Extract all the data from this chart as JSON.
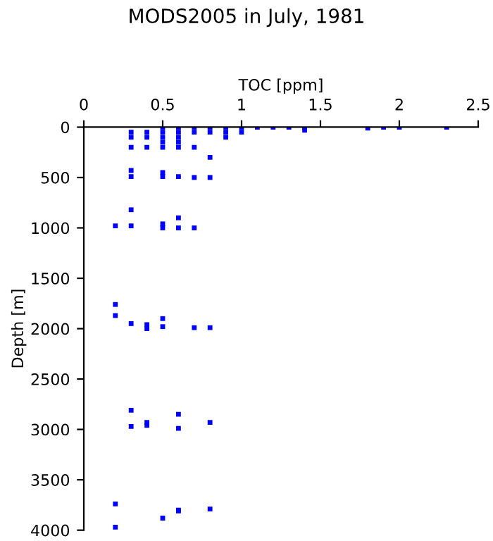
{
  "chart_data": {
    "type": "scatter",
    "title": "MODS2005 in July, 1981",
    "xlabel": "TOC [ppm]",
    "ylabel": "Depth [m]",
    "marker": "square",
    "grid": false,
    "x": [
      0.3,
      0.3,
      0.3,
      0.4,
      0.4,
      0.4,
      0.5,
      0.5,
      0.5,
      0.5,
      0.5,
      0.6,
      0.6,
      0.6,
      0.6,
      0.6,
      0.7,
      0.7,
      0.7,
      0.8,
      0.8,
      0.8,
      0.9,
      0.9,
      0.9,
      1.0,
      1.0,
      1.1,
      1.2,
      1.3,
      1.4,
      1.4,
      1.8,
      1.9,
      2.0,
      2.3,
      0.3,
      0.3,
      0.5,
      0.5,
      0.6,
      0.7,
      0.8,
      0.2,
      0.3,
      0.3,
      0.5,
      0.5,
      0.6,
      0.6,
      0.7,
      0.2,
      0.2,
      0.3,
      0.4,
      0.4,
      0.5,
      0.5,
      0.7,
      0.8,
      0.3,
      0.3,
      0.4,
      0.4,
      0.6,
      0.6,
      0.8,
      0.2,
      0.2,
      0.5,
      0.6,
      0.6,
      0.8
    ],
    "series": [
      {
        "color": "#0000ff",
        "values": [
          50,
          100,
          200,
          50,
          100,
          200,
          0,
          50,
          100,
          150,
          200,
          0,
          50,
          100,
          150,
          200,
          0,
          50,
          200,
          0,
          50,
          300,
          0,
          50,
          100,
          0,
          50,
          0,
          0,
          0,
          0,
          30,
          10,
          0,
          0,
          0,
          430,
          490,
          450,
          490,
          490,
          500,
          500,
          980,
          820,
          980,
          960,
          1000,
          900,
          1000,
          1000,
          1760,
          1870,
          1950,
          1960,
          2000,
          1900,
          1980,
          1990,
          1990,
          2810,
          2970,
          2930,
          2960,
          2850,
          2990,
          2930,
          3740,
          3970,
          3880,
          3800,
          3810,
          3790
        ]
      }
    ],
    "xlim": [
      0,
      2.5
    ],
    "xticks": [
      0,
      0.5,
      1,
      1.5,
      2,
      2.5
    ],
    "ylim": [
      4000,
      0
    ],
    "yticks": [
      0,
      500,
      1000,
      1500,
      2000,
      2500,
      3000,
      3500,
      4000
    ]
  }
}
